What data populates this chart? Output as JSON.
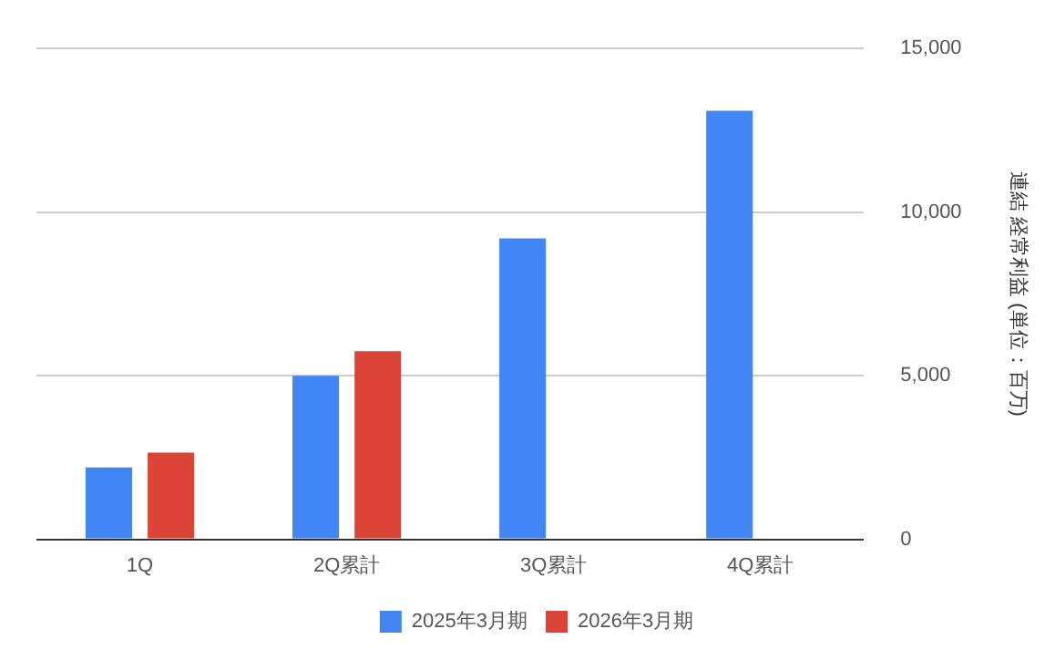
{
  "chart_data": {
    "type": "bar",
    "categories": [
      "1Q",
      "2Q累計",
      "3Q累計",
      "4Q累計"
    ],
    "series": [
      {
        "name": "2025年3月期",
        "color": "#4285f4",
        "values": [
          2200,
          5000,
          9200,
          13100
        ]
      },
      {
        "name": "2026年3月期",
        "color": "#db4437",
        "values": [
          2650,
          5750,
          null,
          null
        ]
      }
    ],
    "ylabel": "連結 経常利益 (単位：百万)",
    "ylim": [
      0,
      15000
    ],
    "yticks": [
      0,
      {
        "value": 5000,
        "label": "5,000"
      },
      {
        "value": 10000,
        "label": "10,000"
      },
      {
        "value": 15000,
        "label": "15,000"
      }
    ],
    "grid": "y",
    "legend": "bottom"
  }
}
